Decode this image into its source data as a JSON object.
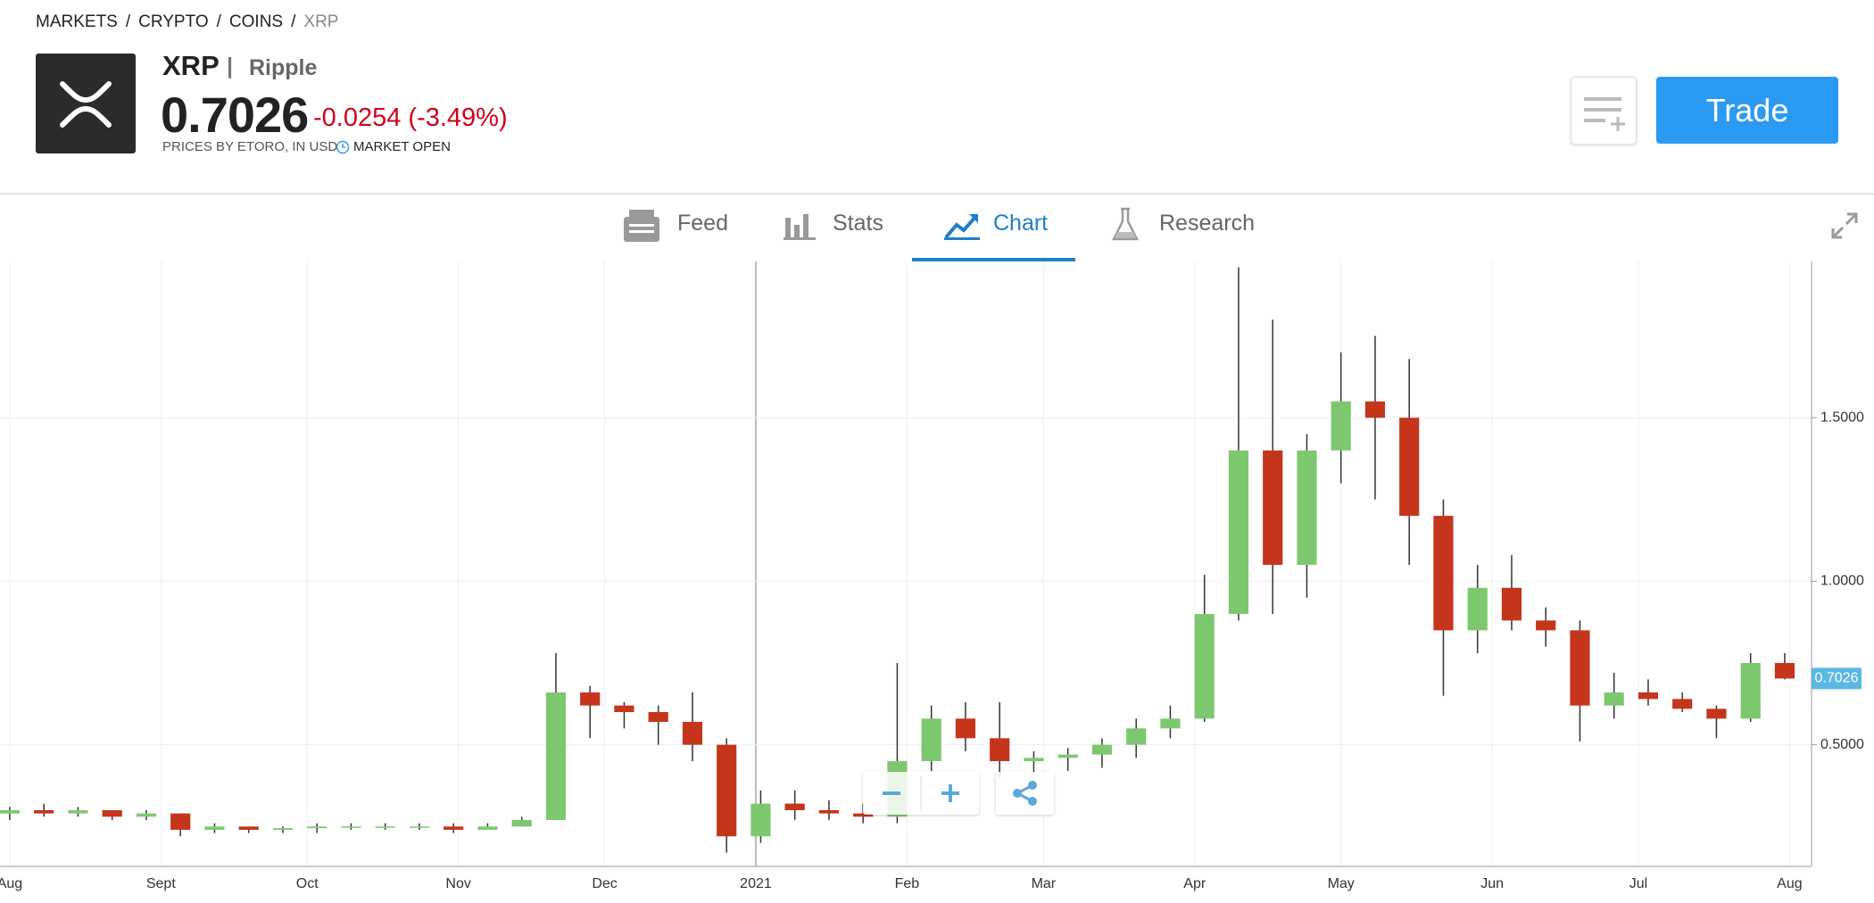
{
  "breadcrumb": [
    "MARKETS",
    "CRYPTO",
    "COINS",
    "XRP"
  ],
  "breadcrumb_separator": "/",
  "instrument": {
    "symbol": "XRP",
    "separator": "|",
    "name": "Ripple",
    "price": "0.7026",
    "change": "-0.0254 (-3.49%)",
    "source": "PRICES BY ETORO, IN USD",
    "status": "MARKET OPEN"
  },
  "trade_button": "Trade",
  "tabs": [
    "Feed",
    "Stats",
    "Chart",
    "Research"
  ],
  "active_tab": 2,
  "chart_data": {
    "type": "candlestick",
    "x": [
      0,
      7,
      14,
      21,
      28,
      35,
      42,
      49,
      56,
      63,
      70,
      77,
      84,
      91,
      98,
      105,
      112,
      119,
      126,
      133,
      140,
      147,
      154,
      161,
      168,
      175,
      182,
      189,
      196,
      203,
      210,
      217,
      224,
      231,
      238,
      245,
      252,
      259,
      266,
      273,
      280,
      287,
      294,
      301,
      308,
      315,
      322,
      329,
      336,
      343,
      350,
      357,
      364
    ],
    "open": [
      0.29,
      0.3,
      0.29,
      0.3,
      0.28,
      0.29,
      0.24,
      0.25,
      0.24,
      0.245,
      0.25,
      0.25,
      0.25,
      0.25,
      0.24,
      0.25,
      0.27,
      0.66,
      0.62,
      0.6,
      0.57,
      0.5,
      0.22,
      0.32,
      0.3,
      0.29,
      0.28,
      0.45,
      0.58,
      0.52,
      0.45,
      0.46,
      0.47,
      0.5,
      0.55,
      0.58,
      0.9,
      1.4,
      1.05,
      1.4,
      1.55,
      1.5,
      1.2,
      0.85,
      0.98,
      0.88,
      0.85,
      0.62,
      0.66,
      0.64,
      0.61,
      0.58,
      0.75
    ],
    "high": [
      0.31,
      0.32,
      0.31,
      0.3,
      0.3,
      0.29,
      0.26,
      0.25,
      0.25,
      0.26,
      0.26,
      0.26,
      0.26,
      0.26,
      0.26,
      0.28,
      0.78,
      0.68,
      0.63,
      0.62,
      0.66,
      0.52,
      0.36,
      0.36,
      0.33,
      0.32,
      0.75,
      0.62,
      0.63,
      0.63,
      0.48,
      0.49,
      0.52,
      0.58,
      0.62,
      1.02,
      1.96,
      1.8,
      1.45,
      1.7,
      1.75,
      1.68,
      1.25,
      1.05,
      1.08,
      0.92,
      0.88,
      0.72,
      0.7,
      0.66,
      0.62,
      0.78,
      0.78
    ],
    "low": [
      0.27,
      0.28,
      0.28,
      0.27,
      0.27,
      0.22,
      0.23,
      0.23,
      0.23,
      0.23,
      0.24,
      0.24,
      0.24,
      0.23,
      0.24,
      0.25,
      0.27,
      0.52,
      0.55,
      0.5,
      0.45,
      0.17,
      0.2,
      0.27,
      0.27,
      0.26,
      0.26,
      0.42,
      0.48,
      0.4,
      0.41,
      0.42,
      0.43,
      0.46,
      0.52,
      0.57,
      0.88,
      0.9,
      0.95,
      1.3,
      1.25,
      1.05,
      0.65,
      0.78,
      0.85,
      0.8,
      0.51,
      0.58,
      0.62,
      0.6,
      0.52,
      0.57,
      0.7
    ],
    "close": [
      0.3,
      0.29,
      0.3,
      0.28,
      0.29,
      0.24,
      0.25,
      0.24,
      0.245,
      0.25,
      0.25,
      0.25,
      0.25,
      0.24,
      0.25,
      0.27,
      0.66,
      0.62,
      0.6,
      0.57,
      0.5,
      0.22,
      0.32,
      0.3,
      0.29,
      0.28,
      0.45,
      0.58,
      0.52,
      0.45,
      0.46,
      0.47,
      0.5,
      0.55,
      0.58,
      0.9,
      1.4,
      1.05,
      1.4,
      1.55,
      1.5,
      1.2,
      0.85,
      0.98,
      0.88,
      0.85,
      0.62,
      0.66,
      0.64,
      0.61,
      0.58,
      0.75,
      0.7026
    ],
    "up_color": "#7dc86f",
    "down_color": "#c5351b",
    "xlim": [
      -2,
      369.5
    ],
    "xticks": [
      {
        "value": 0,
        "label": "Aug"
      },
      {
        "value": 31,
        "label": "Sept"
      },
      {
        "value": 61,
        "label": "Oct"
      },
      {
        "value": 92,
        "label": "Nov"
      },
      {
        "value": 122,
        "label": "Dec"
      },
      {
        "value": 153,
        "label": "2021"
      },
      {
        "value": 184,
        "label": "Feb"
      },
      {
        "value": 212,
        "label": "Mar"
      },
      {
        "value": 243,
        "label": "Apr"
      },
      {
        "value": 273,
        "label": "May"
      },
      {
        "value": 304,
        "label": "Jun"
      },
      {
        "value": 334,
        "label": "Jul"
      },
      {
        "value": 365,
        "label": "Aug"
      }
    ],
    "ylim": [
      0.128,
      1.978
    ],
    "yticks": [
      {
        "value": 0.5,
        "label": "0.5000"
      },
      {
        "value": 1,
        "label": "1.0000"
      },
      {
        "value": 1.5,
        "label": "1.5000"
      }
    ],
    "grid": true,
    "price_marker": {
      "value": 0.7026,
      "label": "0.7026"
    }
  }
}
